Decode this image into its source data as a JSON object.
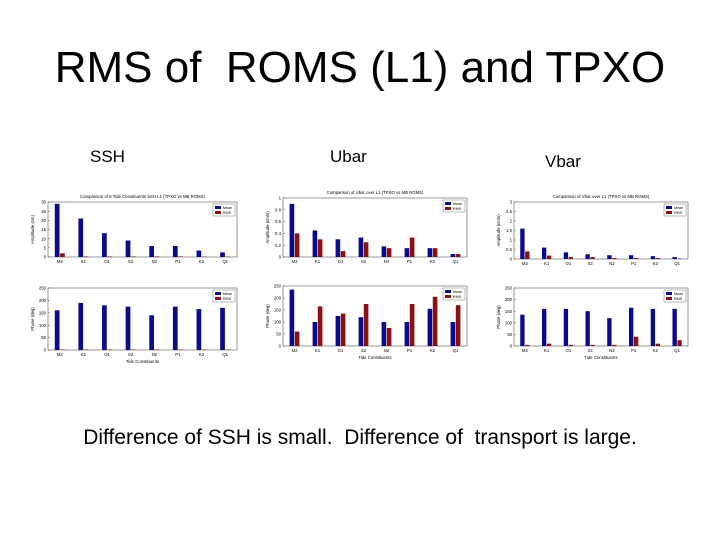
{
  "slide": {
    "title": "RMS of  ROMS (L1) and TPXO",
    "labels": {
      "ssh": "SSH",
      "ubar": "Ubar",
      "vbar": "Vbar"
    },
    "caption": "Difference of SSH is small.  Difference of  transport is large."
  },
  "colors": {
    "mean": "#0a0a8c",
    "rms": "#8c1010"
  },
  "chart_data": [
    {
      "type": "bar",
      "title": "Comparison of 8 Tide Constituents SSH L1 (TPXO vs MB ROMS)",
      "ylabel": "Amplitude (cm)",
      "xlabel": "",
      "categories": [
        "M2",
        "K1",
        "O1",
        "S2",
        "N2",
        "P1",
        "K2",
        "Q1"
      ],
      "ylim": [
        0,
        30
      ],
      "yticks": [
        0,
        5,
        10,
        15,
        20,
        25,
        30
      ],
      "legend": [
        "Mean",
        "RMS"
      ],
      "series": [
        {
          "name": "Mean",
          "values": [
            29,
            21,
            13,
            9,
            6,
            6,
            3.5,
            2.5
          ]
        },
        {
          "name": "RMS",
          "values": [
            2,
            0.3,
            0.3,
            0.3,
            0.3,
            0.3,
            0.2,
            0.2
          ]
        }
      ]
    },
    {
      "type": "bar",
      "title": "",
      "ylabel": "Phase (deg)",
      "xlabel": "Tide Constituents",
      "categories": [
        "M2",
        "K1",
        "O1",
        "S2",
        "N2",
        "P1",
        "K2",
        "Q1"
      ],
      "ylim": [
        0,
        250
      ],
      "yticks": [
        0,
        50,
        100,
        150,
        200,
        250
      ],
      "legend": [
        "Mean",
        "RMS"
      ],
      "series": [
        {
          "name": "Mean",
          "values": [
            160,
            190,
            180,
            175,
            140,
            175,
            165,
            170
          ]
        },
        {
          "name": "RMS",
          "values": [
            2,
            2,
            2,
            2,
            2,
            2,
            2,
            2
          ]
        }
      ]
    },
    {
      "type": "bar",
      "title": "Comparison of Ubar over L1 (TPXO vs MB ROMS)",
      "ylabel": "Amplitude (cm/s)",
      "xlabel": "",
      "categories": [
        "M2",
        "K1",
        "O1",
        "S2",
        "N2",
        "P1",
        "K2",
        "Q1"
      ],
      "ylim": [
        0,
        1
      ],
      "yticks": [
        0,
        0.2,
        0.4,
        0.6,
        0.8,
        1
      ],
      "legend": [
        "Mean",
        "RMS"
      ],
      "series": [
        {
          "name": "Mean",
          "values": [
            0.9,
            0.45,
            0.3,
            0.33,
            0.18,
            0.15,
            0.15,
            0.05
          ]
        },
        {
          "name": "RMS",
          "values": [
            0.4,
            0.3,
            0.1,
            0.25,
            0.15,
            0.33,
            0.15,
            0.05
          ]
        }
      ]
    },
    {
      "type": "bar",
      "title": "",
      "ylabel": "Phase (deg)",
      "xlabel": "Tide Constituents",
      "categories": [
        "M2",
        "K1",
        "O1",
        "S2",
        "N2",
        "P1",
        "K2",
        "Q1"
      ],
      "ylim": [
        0,
        250
      ],
      "yticks": [
        0,
        50,
        100,
        150,
        200,
        250
      ],
      "legend": [
        "Mean",
        "RMS"
      ],
      "series": [
        {
          "name": "Mean",
          "values": [
            235,
            100,
            125,
            120,
            100,
            100,
            155,
            100
          ]
        },
        {
          "name": "RMS",
          "values": [
            60,
            165,
            135,
            175,
            75,
            175,
            205,
            170
          ]
        }
      ]
    },
    {
      "type": "bar",
      "title": "Comparison of Vbar over L1 (TPXO vs MB ROMS)",
      "ylabel": "Amplitude (cm/s)",
      "xlabel": "",
      "categories": [
        "M2",
        "K1",
        "O1",
        "S2",
        "N2",
        "P1",
        "K2",
        "Q1"
      ],
      "ylim": [
        0,
        3
      ],
      "yticks": [
        0,
        0.5,
        1,
        1.5,
        2,
        2.5,
        3
      ],
      "legend": [
        "Mean",
        "RMS"
      ],
      "series": [
        {
          "name": "Mean",
          "values": [
            1.6,
            0.6,
            0.35,
            0.25,
            0.2,
            0.2,
            0.15,
            0.1
          ]
        },
        {
          "name": "RMS",
          "values": [
            0.4,
            0.18,
            0.1,
            0.1,
            0.05,
            0.05,
            0.05,
            0.02
          ]
        }
      ]
    },
    {
      "type": "bar",
      "title": "",
      "ylabel": "Phase (deg)",
      "xlabel": "Tide Constituents",
      "categories": [
        "M2",
        "K1",
        "O1",
        "S2",
        "N2",
        "P1",
        "K2",
        "Q1"
      ],
      "ylim": [
        0,
        250
      ],
      "yticks": [
        0,
        50,
        100,
        150,
        200,
        250
      ],
      "legend": [
        "Mean",
        "RMS"
      ],
      "series": [
        {
          "name": "Mean",
          "values": [
            135,
            160,
            160,
            150,
            120,
            165,
            160,
            160
          ]
        },
        {
          "name": "RMS",
          "values": [
            5,
            10,
            5,
            5,
            5,
            40,
            10,
            25
          ]
        }
      ]
    }
  ]
}
